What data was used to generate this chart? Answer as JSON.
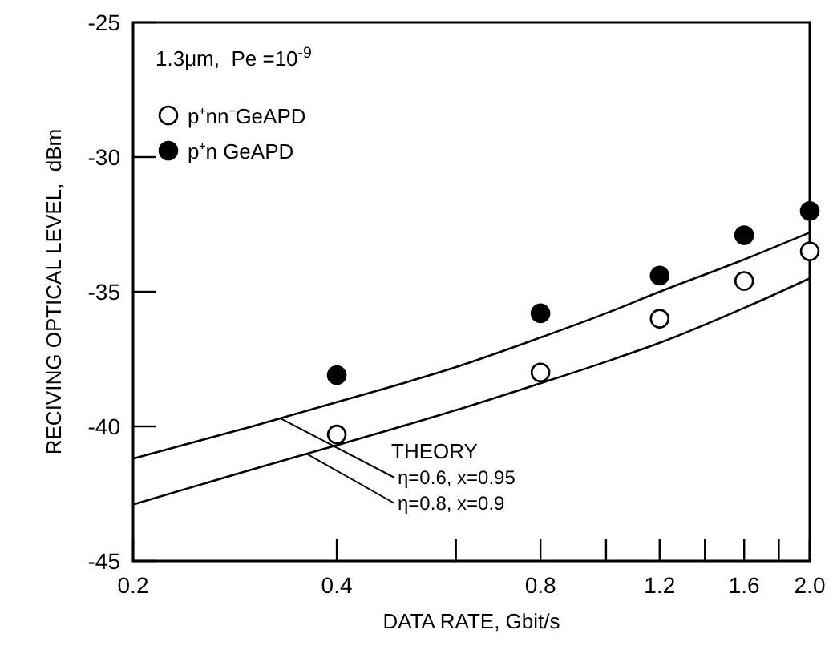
{
  "chart_data": {
    "type": "scatter",
    "xlabel": "DATA  RATE,  Gbit/s",
    "ylabel": "RECIVING OPTICAL LEVEL,  dBm",
    "log": "x",
    "x": [
      0.4,
      0.8,
      1.2,
      1.6,
      2.0
    ],
    "series": [
      {
        "name": "p⁺nn⁻GeAPD",
        "color": "#ffffff",
        "marker": "circle",
        "values": [
          -40.3,
          -38.0,
          -36.0,
          -34.6,
          -33.5
        ]
      },
      {
        "name": "p⁺n GeAPD",
        "color": "#000000",
        "marker": "circle",
        "values": [
          -38.1,
          -35.8,
          -34.4,
          -32.9,
          -32.0
        ]
      },
      {
        "type": "line",
        "color": "#000000",
        "marker": "none",
        "line_style": "solid",
        "x": [
          0.2,
          0.3,
          0.4,
          0.6,
          0.8,
          1.0,
          1.2,
          1.6,
          2.0
        ],
        "values": [
          -41.2,
          -40.0,
          -39.1,
          -37.8,
          -36.7,
          -35.8,
          -35.0,
          -33.8,
          -32.8
        ]
      },
      {
        "type": "line",
        "color": "#000000",
        "marker": "none",
        "line_style": "solid",
        "x": [
          0.2,
          0.3,
          0.4,
          0.6,
          0.8,
          1.0,
          1.2,
          1.6,
          2.0
        ],
        "values": [
          -42.9,
          -41.6,
          -40.7,
          -39.4,
          -38.4,
          -37.6,
          -36.9,
          -35.6,
          -34.5
        ]
      }
    ],
    "annotations": [
      "1.3μm,  Pe =10$^{-9}$",
      "THEORY",
      {
        "text": "η=0.6, x=0.95",
        "x": 0.33,
        "y": -39.7
      },
      {
        "text": "η=0.8, x=0.9",
        "x": 0.36,
        "y": -41.0
      }
    ],
    "xlim": [
      0.2,
      2.0
    ],
    "xticks": [
      {
        "value": 0.2,
        "label": "0.2"
      },
      {
        "value": 0.4,
        "label": "0.4"
      },
      {
        "value": 0.6,
        "label": null
      },
      {
        "value": 0.8,
        "label": "0.8"
      },
      {
        "value": 1.0,
        "label": null
      },
      {
        "value": 1.2,
        "label": "1.2"
      },
      {
        "value": 1.4,
        "label": null
      },
      {
        "value": 1.6,
        "label": "1.6"
      },
      {
        "value": 1.8,
        "label": null
      },
      {
        "value": 2.0,
        "label": "2.0"
      }
    ],
    "ylim": [
      -45,
      -25
    ],
    "yticks": [
      -45,
      -40,
      -35,
      -30,
      -25
    ],
    "grid": false,
    "legend": "top left"
  }
}
